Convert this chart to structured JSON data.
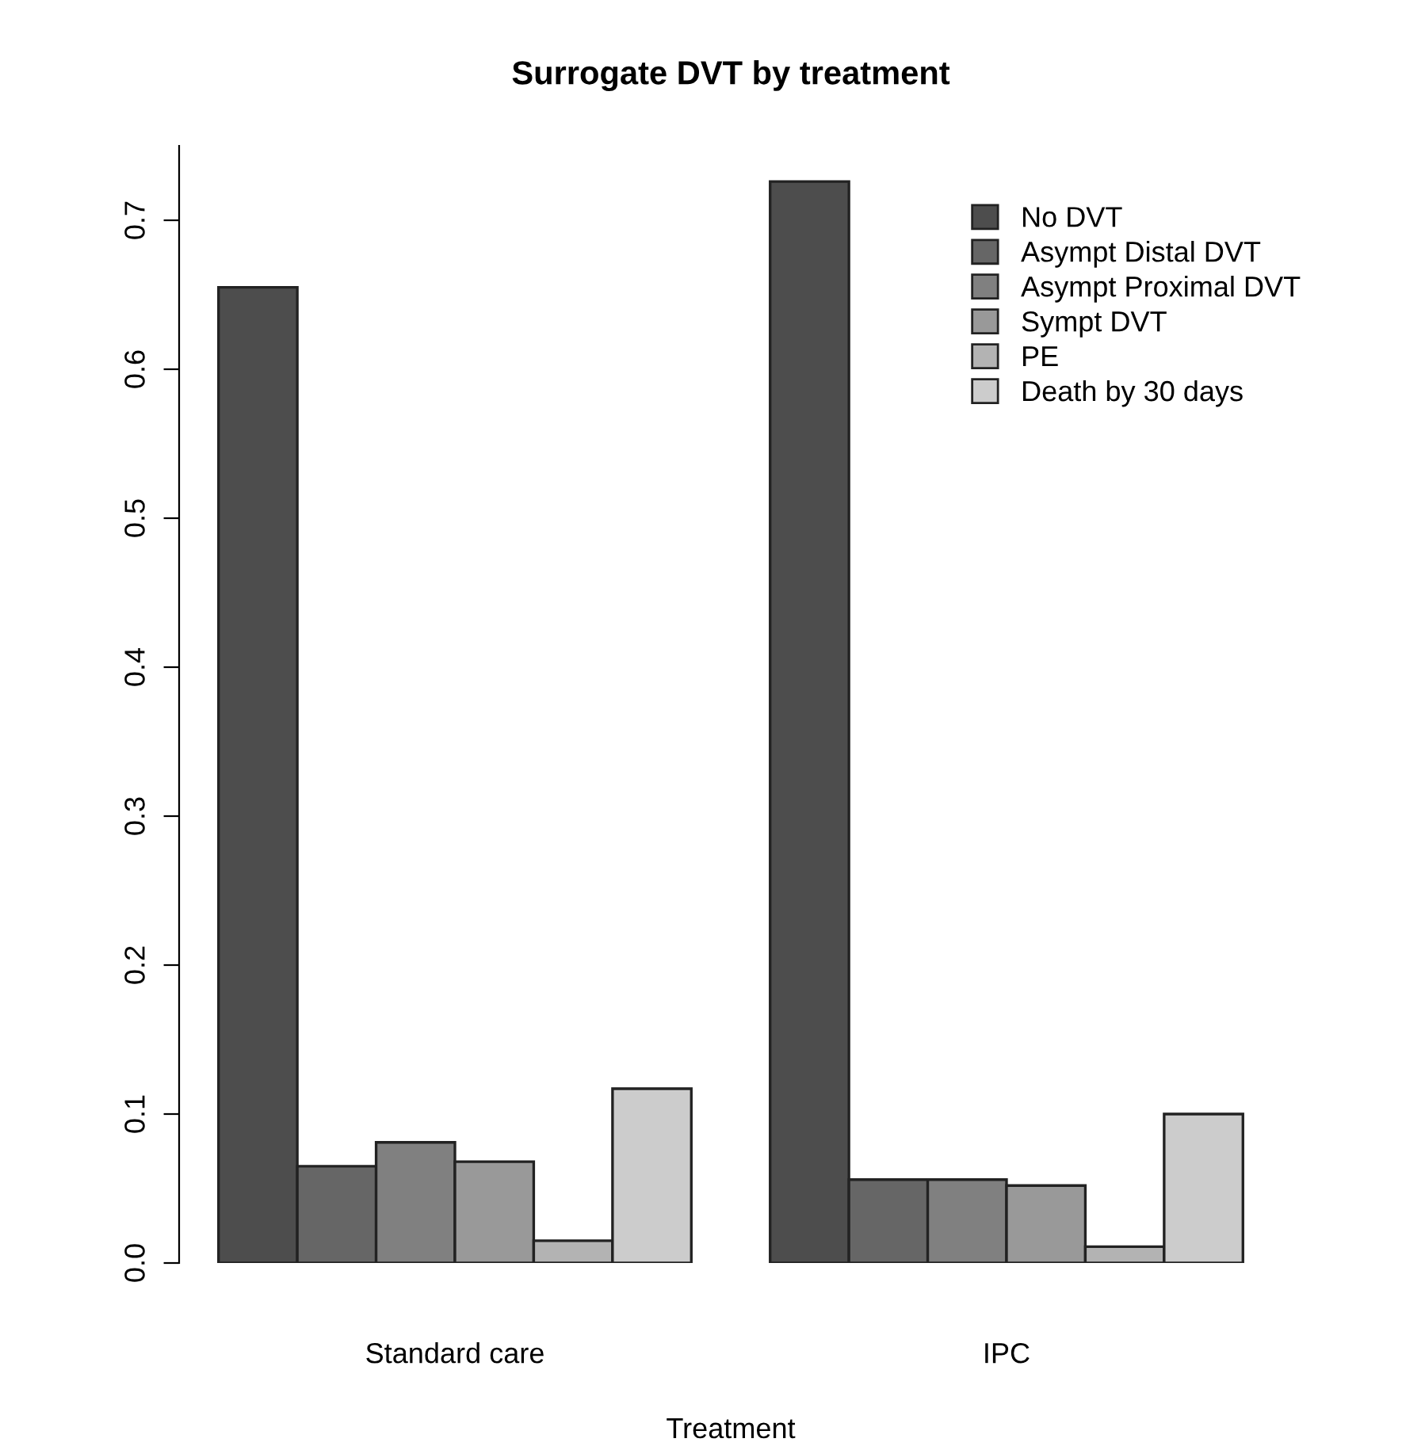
{
  "chart_data": {
    "type": "bar",
    "title": "Surrogate DVT by treatment",
    "xlabel": "Treatment",
    "categories": [
      "Standard care",
      "IPC"
    ],
    "series": [
      {
        "name": "No DVT",
        "color": "#4d4d4d",
        "values": [
          0.655,
          0.726
        ]
      },
      {
        "name": "Asympt Distal DVT",
        "color": "#666666",
        "values": [
          0.065,
          0.056
        ]
      },
      {
        "name": "Asympt Proximal DVT",
        "color": "#808080",
        "values": [
          0.081,
          0.056
        ]
      },
      {
        "name": "Sympt DVT",
        "color": "#999999",
        "values": [
          0.068,
          0.052
        ]
      },
      {
        "name": "PE",
        "color": "#b3b3b3",
        "values": [
          0.015,
          0.011
        ]
      },
      {
        "name": "Death by 30 days",
        "color": "#cccccc",
        "values": [
          0.117,
          0.1
        ]
      }
    ],
    "ylim": [
      0,
      0.75
    ],
    "yticks": [
      {
        "value": 0,
        "label": "0.0"
      },
      0.1,
      0.2,
      0.3,
      0.4,
      0.5,
      0.6,
      0.7
    ],
    "grid": false,
    "legend": "top right"
  }
}
